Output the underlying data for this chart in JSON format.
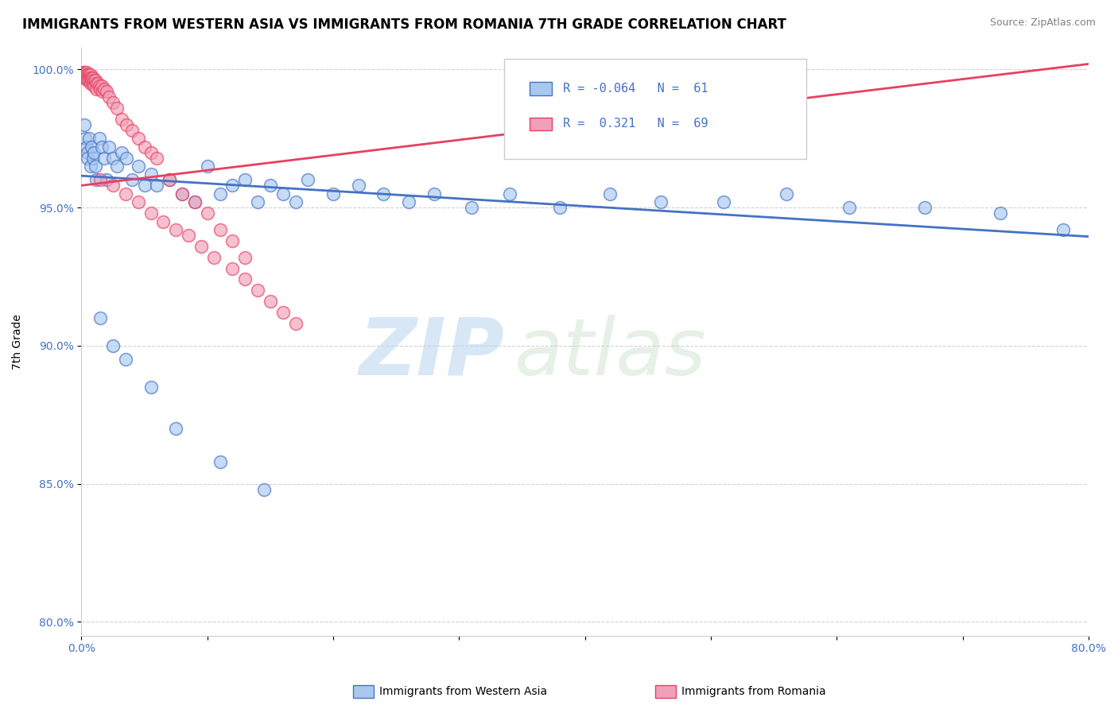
{
  "title": "IMMIGRANTS FROM WESTERN ASIA VS IMMIGRANTS FROM ROMANIA 7TH GRADE CORRELATION CHART",
  "source": "Source: ZipAtlas.com",
  "xlabel_legend_blue": "Immigrants from Western Asia",
  "xlabel_legend_pink": "Immigrants from Romania",
  "ylabel": "7th Grade",
  "xlim": [
    0.0,
    0.8
  ],
  "ylim": [
    0.795,
    1.008
  ],
  "xticks": [
    0.0,
    0.1,
    0.2,
    0.3,
    0.4,
    0.5,
    0.6,
    0.7,
    0.8
  ],
  "xticklabels": [
    "0.0%",
    "",
    "",
    "",
    "",
    "",
    "",
    "",
    "80.0%"
  ],
  "yticks": [
    0.8,
    0.85,
    0.9,
    0.95,
    1.0
  ],
  "yticklabels": [
    "80.0%",
    "85.0%",
    "90.0%",
    "95.0%",
    "100.0%"
  ],
  "color_blue": "#a8c8f0",
  "color_pink": "#f0a0b8",
  "color_blue_line": "#4472C4",
  "color_pink_line": "#E84060",
  "watermark_zip": "ZIP",
  "watermark_atlas": "atlas",
  "blue_x": [
    0.002,
    0.003,
    0.004,
    0.005,
    0.005,
    0.006,
    0.007,
    0.008,
    0.009,
    0.01,
    0.011,
    0.012,
    0.014,
    0.016,
    0.018,
    0.02,
    0.022,
    0.025,
    0.028,
    0.032,
    0.036,
    0.04,
    0.045,
    0.05,
    0.055,
    0.06,
    0.07,
    0.08,
    0.09,
    0.1,
    0.11,
    0.12,
    0.13,
    0.14,
    0.15,
    0.16,
    0.17,
    0.18,
    0.2,
    0.22,
    0.24,
    0.26,
    0.28,
    0.31,
    0.34,
    0.38,
    0.42,
    0.46,
    0.51,
    0.56,
    0.61,
    0.67,
    0.73,
    0.78,
    0.015,
    0.025,
    0.035,
    0.055,
    0.075,
    0.11,
    0.145
  ],
  "blue_y": [
    0.98,
    0.975,
    0.972,
    0.97,
    0.968,
    0.975,
    0.965,
    0.972,
    0.968,
    0.97,
    0.965,
    0.96,
    0.975,
    0.972,
    0.968,
    0.96,
    0.972,
    0.968,
    0.965,
    0.97,
    0.968,
    0.96,
    0.965,
    0.958,
    0.962,
    0.958,
    0.96,
    0.955,
    0.952,
    0.965,
    0.955,
    0.958,
    0.96,
    0.952,
    0.958,
    0.955,
    0.952,
    0.96,
    0.955,
    0.958,
    0.955,
    0.952,
    0.955,
    0.95,
    0.955,
    0.95,
    0.955,
    0.952,
    0.952,
    0.955,
    0.95,
    0.95,
    0.948,
    0.942,
    0.91,
    0.9,
    0.895,
    0.885,
    0.87,
    0.858,
    0.848
  ],
  "pink_x": [
    0.001,
    0.001,
    0.002,
    0.002,
    0.002,
    0.003,
    0.003,
    0.003,
    0.004,
    0.004,
    0.004,
    0.005,
    0.005,
    0.005,
    0.006,
    0.006,
    0.006,
    0.007,
    0.007,
    0.007,
    0.008,
    0.008,
    0.009,
    0.009,
    0.01,
    0.01,
    0.011,
    0.012,
    0.012,
    0.013,
    0.014,
    0.015,
    0.016,
    0.017,
    0.018,
    0.02,
    0.022,
    0.025,
    0.028,
    0.032,
    0.036,
    0.04,
    0.045,
    0.05,
    0.055,
    0.06,
    0.07,
    0.08,
    0.09,
    0.1,
    0.11,
    0.12,
    0.13,
    0.015,
    0.025,
    0.035,
    0.045,
    0.055,
    0.065,
    0.075,
    0.085,
    0.095,
    0.105,
    0.12,
    0.13,
    0.14,
    0.15,
    0.16,
    0.17
  ],
  "pink_y": [
    0.999,
    0.998,
    0.999,
    0.998,
    0.997,
    0.999,
    0.998,
    0.997,
    0.999,
    0.998,
    0.997,
    0.998,
    0.997,
    0.996,
    0.998,
    0.997,
    0.996,
    0.998,
    0.997,
    0.995,
    0.997,
    0.996,
    0.997,
    0.995,
    0.996,
    0.994,
    0.996,
    0.995,
    0.993,
    0.995,
    0.994,
    0.993,
    0.994,
    0.992,
    0.993,
    0.992,
    0.99,
    0.988,
    0.986,
    0.982,
    0.98,
    0.978,
    0.975,
    0.972,
    0.97,
    0.968,
    0.96,
    0.955,
    0.952,
    0.948,
    0.942,
    0.938,
    0.932,
    0.96,
    0.958,
    0.955,
    0.952,
    0.948,
    0.945,
    0.942,
    0.94,
    0.936,
    0.932,
    0.928,
    0.924,
    0.92,
    0.916,
    0.912,
    0.908
  ],
  "title_fontsize": 12,
  "axis_label_fontsize": 10,
  "tick_fontsize": 10
}
